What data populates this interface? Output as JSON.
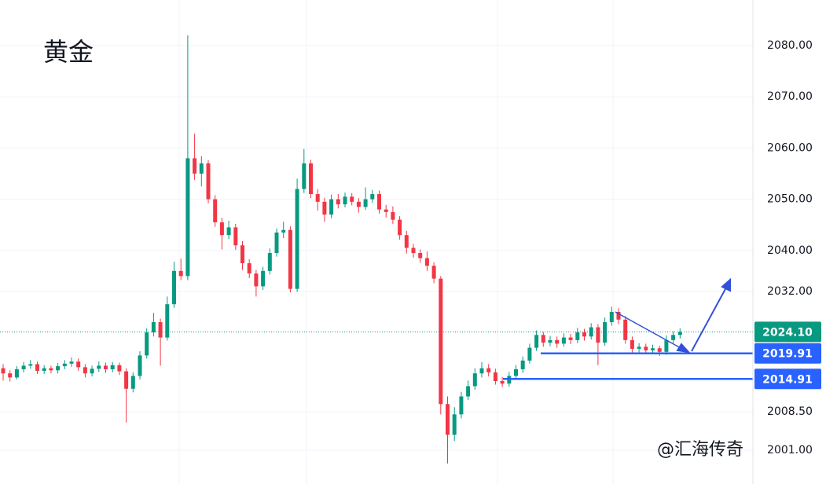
{
  "chart_data": {
    "type": "candlestick",
    "title": "黄金",
    "watermark": "@汇海传奇",
    "up_color": "#089981",
    "down_color": "#f23645",
    "level_color": "#2962ff",
    "last_color": "#089981",
    "ylim": [
      1994.4,
      2088.9
    ],
    "yticks": [
      {
        "value": 2080,
        "label": "2080.00"
      },
      {
        "value": 2070,
        "label": "2070.00"
      },
      {
        "value": 2060,
        "label": "2060.00"
      },
      {
        "value": 2050,
        "label": "2050.00"
      },
      {
        "value": 2040,
        "label": "2040.00"
      },
      {
        "value": 2032,
        "label": "2032.00"
      },
      {
        "value": 2008.5,
        "label": "2008.50"
      },
      {
        "value": 2001,
        "label": "2001.00"
      }
    ],
    "grid": true,
    "last_price": {
      "value": 2024.1,
      "label": "2024.10"
    },
    "levels": [
      {
        "value": 2019.91,
        "label": "2019.91"
      },
      {
        "value": 2014.91,
        "label": "2014.91"
      }
    ],
    "open": [
      2017.0,
      2016.0,
      2015.2,
      2016.8,
      2017.5,
      2017.8,
      2016.5,
      2017.0,
      2016.6,
      2017.4,
      2017.9,
      2018.3,
      2017.2,
      2016.0,
      2016.9,
      2017.5,
      2016.8,
      2017.6,
      2016.4,
      2013.0,
      2015.5,
      2019.5,
      2024.0,
      2026.0,
      2023.0,
      2029.5,
      2036.0,
      2035.0,
      2058.0,
      2055.0,
      2057.0,
      2050.0,
      2045.5,
      2043.0,
      2044.5,
      2041.0,
      2037.5,
      2035.5,
      2033.0,
      2036.0,
      2039.5,
      2043.5,
      2044.0,
      2032.5,
      2052.0,
      2057.0,
      2051.0,
      2049.5,
      2047.0,
      2050.0,
      2049.0,
      2050.5,
      2049.5,
      2048.5,
      2050.0,
      2051.0,
      2048.0,
      2047.5,
      2046.0,
      2043.0,
      2040.5,
      2039.5,
      2038.5,
      2037.0,
      2034.5,
      2010.0,
      2004.0,
      2008.0,
      2011.5,
      2013.5,
      2016.0,
      2017.0,
      2016.2,
      2014.5,
      2014.0,
      2015.5,
      2016.8,
      2018.5,
      2021.0,
      2023.5,
      2022.0,
      2022.5,
      2021.8,
      2023.0,
      2022.5,
      2024.0,
      2023.2,
      2025.0,
      2022.0,
      2026.0,
      2028.0,
      2026.5,
      2022.5,
      2020.8,
      2021.2,
      2020.5,
      2020.9,
      2020.2,
      2022.5,
      2023.5
    ],
    "high": [
      2017.8,
      2016.6,
      2017.4,
      2018.2,
      2018.6,
      2018.3,
      2017.6,
      2017.5,
      2018.0,
      2018.6,
      2019.1,
      2018.9,
      2017.8,
      2017.5,
      2018.3,
      2018.1,
      2018.2,
      2018.1,
      2017.0,
      2016.2,
      2020.3,
      2024.8,
      2027.8,
      2026.7,
      2031.0,
      2037.8,
      2038.4,
      2082.0,
      2062.8,
      2058.4,
      2057.6,
      2050.8,
      2046.4,
      2045.8,
      2045.2,
      2041.8,
      2038.3,
      2036.2,
      2036.8,
      2040.4,
      2044.3,
      2045.6,
      2044.7,
      2054.0,
      2059.8,
      2057.7,
      2052.0,
      2050.3,
      2050.9,
      2051.0,
      2051.3,
      2051.2,
      2050.2,
      2052.3,
      2051.8,
      2051.7,
      2048.9,
      2048.6,
      2046.7,
      2043.8,
      2041.3,
      2040.2,
      2039.8,
      2037.7,
      2035.0,
      2011.5,
      2009.4,
      2012.4,
      2014.6,
      2017.0,
      2018.2,
      2017.8,
      2016.9,
      2015.3,
      2016.3,
      2017.6,
      2019.3,
      2021.8,
      2024.4,
      2024.1,
      2023.3,
      2023.2,
      2023.8,
      2023.7,
      2024.9,
      2024.7,
      2025.8,
      2025.6,
      2026.9,
      2029.0,
      2028.7,
      2027.2,
      2023.2,
      2021.9,
      2021.8,
      2021.6,
      2021.4,
      2023.4,
      2024.2,
      2024.8
    ],
    "low": [
      2014.6,
      2014.4,
      2014.8,
      2016.2,
      2016.9,
      2015.9,
      2015.9,
      2016.0,
      2016.0,
      2016.8,
      2017.3,
      2016.5,
      2015.2,
      2015.4,
      2016.3,
      2016.1,
      2016.2,
      2015.7,
      2006.4,
      2012.3,
      2014.8,
      2018.9,
      2023.2,
      2017.5,
      2022.4,
      2028.8,
      2034.2,
      2034.2,
      2053.8,
      2052.5,
      2049.2,
      2044.6,
      2040.2,
      2042.2,
      2040.1,
      2036.2,
      2034.6,
      2031.0,
      2032.3,
      2035.3,
      2038.8,
      2042.4,
      2031.8,
      2031.9,
      2051.2,
      2050.2,
      2047.8,
      2045.6,
      2046.3,
      2048.2,
      2048.4,
      2048.8,
      2047.4,
      2047.9,
      2049.3,
      2047.2,
      2046.4,
      2045.2,
      2042.1,
      2039.4,
      2038.6,
      2037.6,
      2036.0,
      2033.6,
      2008.0,
      1998.4,
      2002.8,
      2007.2,
      2010.8,
      2012.8,
      2015.2,
      2015.4,
      2013.8,
      2013.3,
      2013.4,
      2014.9,
      2016.1,
      2017.9,
      2020.4,
      2021.2,
      2021.3,
      2021.0,
      2021.2,
      2021.7,
      2021.9,
      2022.4,
      2022.6,
      2017.6,
      2021.4,
      2025.3,
      2025.6,
      2021.8,
      2020.1,
      2020.1,
      2019.8,
      2019.9,
      2019.4,
      2019.6,
      2021.9,
      2022.8
    ],
    "close": [
      2016.0,
      2015.2,
      2016.8,
      2017.5,
      2017.8,
      2016.5,
      2017.0,
      2016.6,
      2017.4,
      2017.9,
      2018.3,
      2017.2,
      2016.0,
      2016.9,
      2017.5,
      2016.8,
      2017.6,
      2016.4,
      2013.0,
      2015.5,
      2019.5,
      2024.0,
      2026.0,
      2023.0,
      2029.5,
      2036.0,
      2035.0,
      2058.0,
      2055.0,
      2057.0,
      2050.0,
      2045.5,
      2043.0,
      2044.5,
      2041.0,
      2037.5,
      2035.5,
      2033.0,
      2036.0,
      2039.5,
      2043.5,
      2044.0,
      2032.5,
      2052.0,
      2057.0,
      2051.0,
      2049.5,
      2047.0,
      2050.0,
      2049.0,
      2050.5,
      2049.5,
      2048.5,
      2050.0,
      2051.0,
      2048.0,
      2047.5,
      2046.0,
      2043.0,
      2040.5,
      2039.5,
      2038.5,
      2037.0,
      2034.5,
      2010.0,
      2004.0,
      2008.0,
      2011.5,
      2013.5,
      2016.0,
      2017.0,
      2016.2,
      2014.5,
      2014.0,
      2015.5,
      2016.8,
      2018.5,
      2021.0,
      2023.5,
      2022.0,
      2022.5,
      2021.8,
      2023.0,
      2022.5,
      2024.0,
      2023.2,
      2025.0,
      2022.0,
      2026.0,
      2028.0,
      2026.5,
      2022.5,
      2020.8,
      2021.2,
      2020.5,
      2020.9,
      2020.2,
      2022.5,
      2023.5,
      2024.1
    ]
  }
}
